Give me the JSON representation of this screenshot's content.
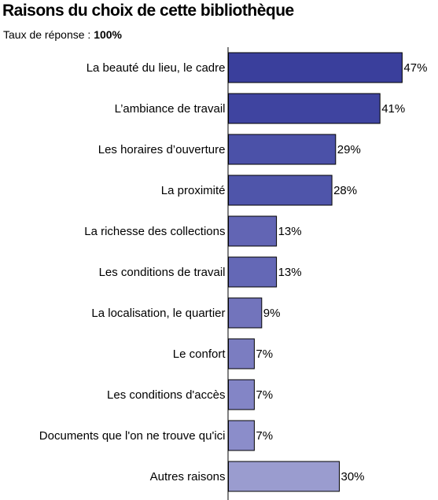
{
  "header": {
    "title": "Raisons du choix de cette bibliothèque",
    "subtitle_prefix": "Taux de réponse : ",
    "subtitle_value": "100%"
  },
  "chart_data": {
    "type": "bar",
    "orientation": "horizontal",
    "categories": [
      "La beauté du lieu, le cadre",
      "L’ambiance de travail",
      "Les horaires d’ouverture",
      "La proximité",
      "La richesse des collections",
      "Les conditions de travail",
      "La localisation, le quartier",
      "Le confort",
      "Les conditions d'accès",
      "Documents que l'on ne trouve qu'ici",
      "Autres raisons"
    ],
    "values": [
      47,
      41,
      29,
      28,
      13,
      13,
      9,
      7,
      7,
      7,
      30
    ],
    "value_labels": [
      "47%",
      "41%",
      "29%",
      "28%",
      "13%",
      "13%",
      "9%",
      "7%",
      "7%",
      "7%",
      "30%"
    ],
    "unit": "%",
    "xlim": [
      0,
      100
    ],
    "colors": [
      "#3a3f9c",
      "#3f44a0",
      "#4b51a8",
      "#4f55aa",
      "#6265b4",
      "#6468b6",
      "#7274bc",
      "#7b7dc1",
      "#8385c6",
      "#8b8dca",
      "#9a9ccf"
    ],
    "bar_edge_color": "#000000",
    "grid": false,
    "legend": "none"
  }
}
